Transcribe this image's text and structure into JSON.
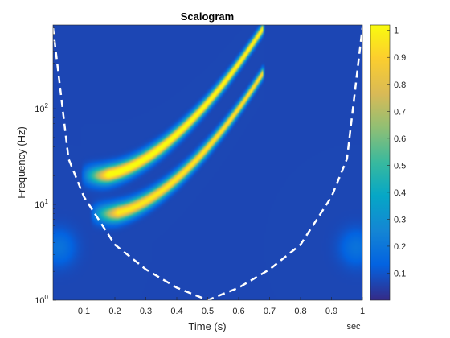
{
  "chart_data": {
    "type": "heatmap",
    "title": "Scalogram",
    "xlabel": "Time (s)",
    "ylabel": "Frequency (Hz)",
    "x_unit_label": "sec",
    "xlim": [
      0,
      1
    ],
    "ylim": [
      1,
      750
    ],
    "yscale": "log",
    "x_ticks": [
      0.1,
      0.2,
      0.3,
      0.4,
      0.5,
      0.6,
      0.7,
      0.8,
      0.9,
      1
    ],
    "x_tick_labels": [
      "0.1",
      "0.2",
      "0.3",
      "0.4",
      "0.5",
      "0.6",
      "0.7",
      "0.8",
      "0.9",
      "1"
    ],
    "y_ticks": [
      1,
      10,
      100
    ],
    "y_tick_labels": [
      {
        "base": "10",
        "exp": "0"
      },
      {
        "base": "10",
        "exp": "1"
      },
      {
        "base": "10",
        "exp": "2"
      }
    ],
    "colorbar": {
      "colormap": "parula",
      "range": [
        0,
        1.02
      ],
      "ticks": [
        0.1,
        0.2,
        0.3,
        0.4,
        0.5,
        0.6,
        0.7,
        0.8,
        0.9,
        1
      ],
      "tick_labels": [
        "0.1",
        "0.2",
        "0.3",
        "0.4",
        "0.5",
        "0.6",
        "0.7",
        "0.8",
        "0.9",
        "1"
      ]
    },
    "chirps": [
      {
        "start_time": 0.15,
        "end_time": 0.68,
        "start_freq": 20,
        "end_freq": 700,
        "peak": 1.0
      },
      {
        "start_time": 0.18,
        "end_time": 0.68,
        "start_freq": 8,
        "end_freq": 240,
        "peak": 0.9
      }
    ],
    "cone_of_influence": {
      "style": "dashed",
      "color": "#ffffff",
      "time": [
        0.0,
        0.05,
        0.1,
        0.2,
        0.3,
        0.4,
        0.5,
        0.6,
        0.7,
        0.8,
        0.9,
        0.95,
        1.0
      ],
      "freq": [
        700,
        30,
        12,
        3.8,
        2.1,
        1.35,
        1.0,
        1.35,
        2.1,
        3.8,
        12,
        30,
        700
      ]
    }
  }
}
